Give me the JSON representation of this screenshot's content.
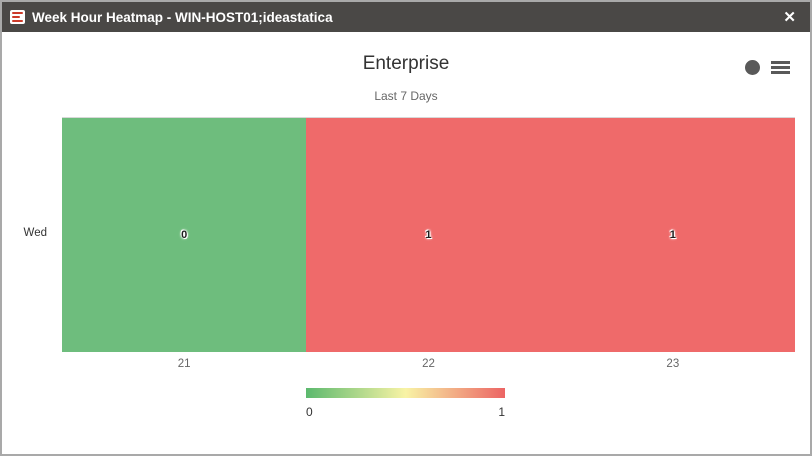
{
  "window": {
    "title": "Week Hour Heatmap - WIN-HOST01;ideastatica",
    "close_label": "✕",
    "titlebar_color": "#4a4846"
  },
  "chart": {
    "title": "Enterprise",
    "subtitle": "Last 7 Days",
    "toolbar_icons": [
      "circle-icon",
      "menu-icon"
    ]
  },
  "chart_data": {
    "type": "heatmap",
    "title": "Enterprise",
    "subtitle": "Last 7 Days",
    "x_categories": [
      "21",
      "22",
      "23"
    ],
    "y_categories": [
      "Wed"
    ],
    "values": [
      [
        0,
        1,
        1
      ]
    ],
    "cell_colors": [
      [
        "#6ebd7d",
        "#ef6a6a",
        "#ef6a6a"
      ]
    ],
    "color_axis": {
      "min": 0,
      "max": 1,
      "min_label": "0",
      "max_label": "1",
      "gradient": [
        "#5cb96e",
        "#f8f3a5",
        "#ec6464"
      ]
    },
    "legend_position": "bottom",
    "grid": false
  }
}
